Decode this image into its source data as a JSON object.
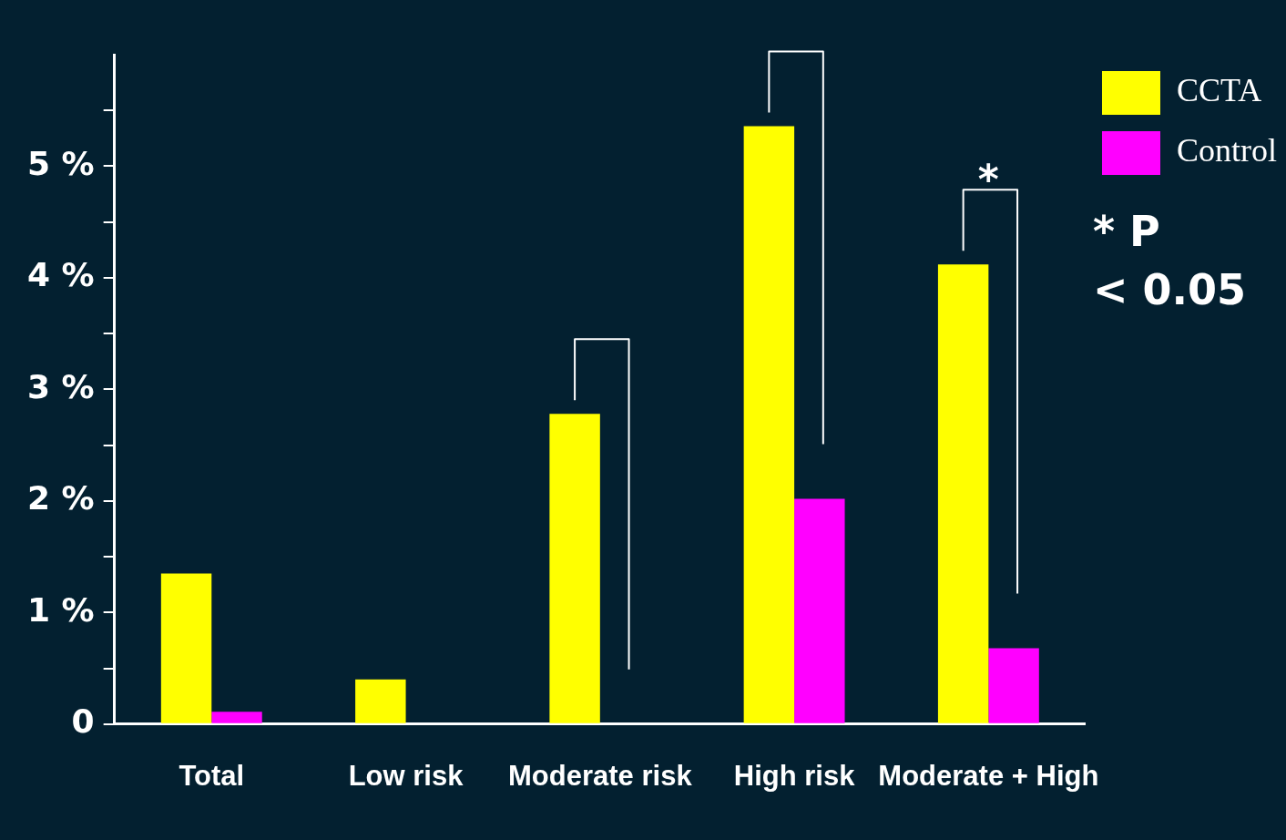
{
  "chart_data": {
    "type": "bar",
    "categories": [
      "Total",
      "Low risk",
      "Moderate risk",
      "High risk",
      "Moderate + High"
    ],
    "series": [
      {
        "name": "CCTA",
        "color": "#ffff00",
        "values": [
          1.35,
          0.4,
          2.78,
          5.36,
          4.12
        ]
      },
      {
        "name": "Control",
        "color": "#ff00ff",
        "values": [
          0.11,
          0,
          0,
          2.02,
          0.68
        ]
      }
    ],
    "ylim": [
      0,
      6
    ],
    "yticks": [
      {
        "value": 0,
        "label": "0"
      },
      {
        "value": 0.5,
        "label": null
      },
      {
        "value": 1,
        "label": "1 %"
      },
      {
        "value": 1.5,
        "label": null
      },
      {
        "value": 2,
        "label": "2 %"
      },
      {
        "value": 2.5,
        "label": null
      },
      {
        "value": 3,
        "label": "3 %"
      },
      {
        "value": 3.5,
        "label": null
      },
      {
        "value": 4,
        "label": "4 %"
      },
      {
        "value": 4.5,
        "label": null
      },
      {
        "value": 5,
        "label": "5 %"
      },
      {
        "value": 5.5,
        "label": null
      }
    ],
    "annotations": [
      "*",
      "* P\n< 0.05"
    ],
    "legend": "top right",
    "grid": false
  }
}
